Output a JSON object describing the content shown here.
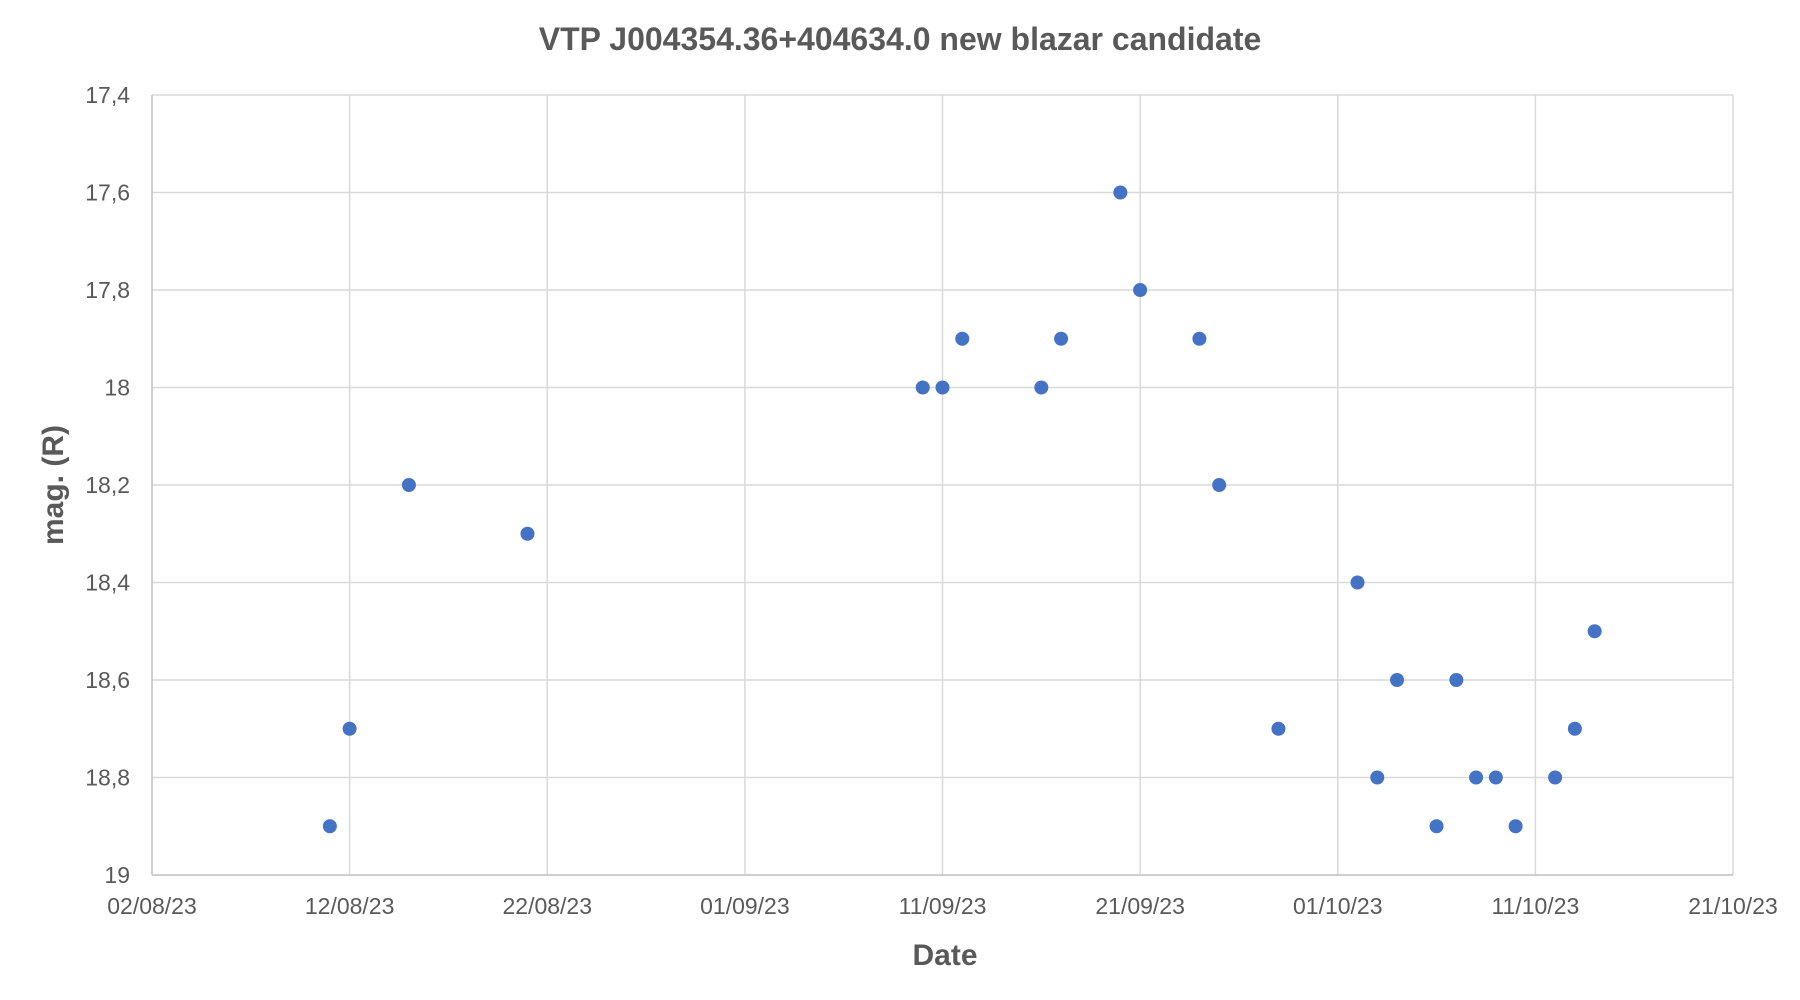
{
  "chart_data": {
    "type": "scatter",
    "title": "VTP J004354.36+404634.0 new blazar candidate",
    "xlabel": "Date",
    "ylabel": "mag. (R)",
    "x_is_date": true,
    "xlim": [
      "2023-08-02",
      "2023-10-21"
    ],
    "x_ticks": [
      {
        "date": "2023-08-02",
        "label": "02/08/23"
      },
      {
        "date": "2023-08-12",
        "label": "12/08/23"
      },
      {
        "date": "2023-08-22",
        "label": "22/08/23"
      },
      {
        "date": "2023-09-01",
        "label": "01/09/23"
      },
      {
        "date": "2023-09-11",
        "label": "11/09/23"
      },
      {
        "date": "2023-09-21",
        "label": "21/09/23"
      },
      {
        "date": "2023-10-01",
        "label": "01/10/23"
      },
      {
        "date": "2023-10-11",
        "label": "11/10/23"
      },
      {
        "date": "2023-10-21",
        "label": "21/10/23"
      }
    ],
    "ylim": [
      17.4,
      19
    ],
    "y_reversed": true,
    "y_ticks": [
      {
        "value": 17.4,
        "label": "17,4"
      },
      {
        "value": 17.6,
        "label": "17,6"
      },
      {
        "value": 17.8,
        "label": "17,8"
      },
      {
        "value": 18.0,
        "label": "18"
      },
      {
        "value": 18.2,
        "label": "18,2"
      },
      {
        "value": 18.4,
        "label": "18,4"
      },
      {
        "value": 18.6,
        "label": "18,6"
      },
      {
        "value": 18.8,
        "label": "18,8"
      },
      {
        "value": 19.0,
        "label": "19"
      }
    ],
    "grid": true,
    "legend": false,
    "color": "#4472c4",
    "points": [
      {
        "x": "2023-08-11",
        "y": 18.9
      },
      {
        "x": "2023-08-12",
        "y": 18.7
      },
      {
        "x": "2023-08-15",
        "y": 18.2
      },
      {
        "x": "2023-08-21",
        "y": 18.3
      },
      {
        "x": "2023-09-10",
        "y": 18.0
      },
      {
        "x": "2023-09-11",
        "y": 18.0
      },
      {
        "x": "2023-09-12",
        "y": 17.9
      },
      {
        "x": "2023-09-16",
        "y": 18.0
      },
      {
        "x": "2023-09-17",
        "y": 17.9
      },
      {
        "x": "2023-09-20",
        "y": 17.6
      },
      {
        "x": "2023-09-21",
        "y": 17.8
      },
      {
        "x": "2023-09-24",
        "y": 17.9
      },
      {
        "x": "2023-09-25",
        "y": 18.2
      },
      {
        "x": "2023-09-28",
        "y": 18.7
      },
      {
        "x": "2023-10-02",
        "y": 18.4
      },
      {
        "x": "2023-10-03",
        "y": 18.8
      },
      {
        "x": "2023-10-04",
        "y": 18.6
      },
      {
        "x": "2023-10-06",
        "y": 18.9
      },
      {
        "x": "2023-10-07",
        "y": 18.6
      },
      {
        "x": "2023-10-08",
        "y": 18.8
      },
      {
        "x": "2023-10-09",
        "y": 18.8
      },
      {
        "x": "2023-10-10",
        "y": 18.9
      },
      {
        "x": "2023-10-12",
        "y": 18.8
      },
      {
        "x": "2023-10-13",
        "y": 18.7
      },
      {
        "x": "2023-10-14",
        "y": 18.5
      }
    ]
  }
}
